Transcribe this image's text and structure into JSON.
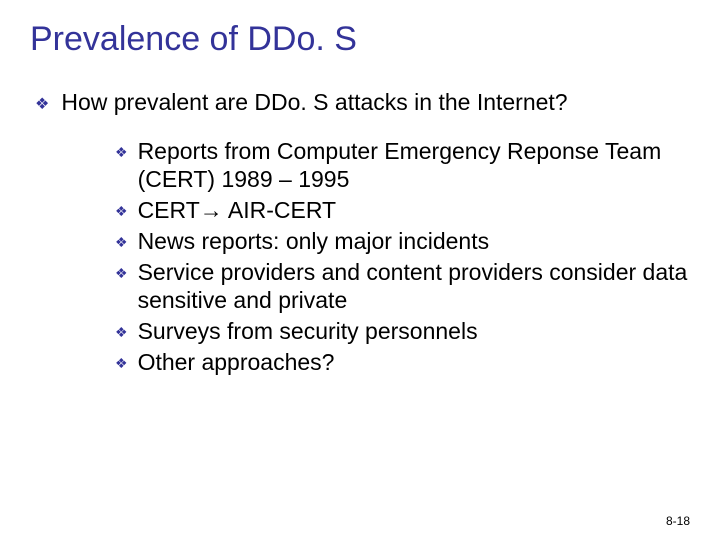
{
  "slide": {
    "title": "Prevalence of DDo. S",
    "title_color": "#333399",
    "title_fontsize": 34,
    "background_color": "#ffffff",
    "bullet_color": "#333399",
    "text_color": "#000000",
    "level1_fontsize": 23,
    "level2_fontsize": 23,
    "level1": {
      "text": "How prevalent are DDo. S attacks in the Internet?"
    },
    "level2_items": [
      {
        "text": "Reports from Computer Emergency Reponse Team (CERT) 1989 – 1995"
      },
      {
        "text": "CERT→ AIR-CERT"
      },
      {
        "text": "News reports: only major incidents"
      },
      {
        "text": "Service providers and content providers consider data sensitive and private"
      },
      {
        "text": "Surveys from security personnels"
      },
      {
        "text": "Other approaches?"
      }
    ],
    "footer": "8-18",
    "bullet_char": "❖"
  }
}
